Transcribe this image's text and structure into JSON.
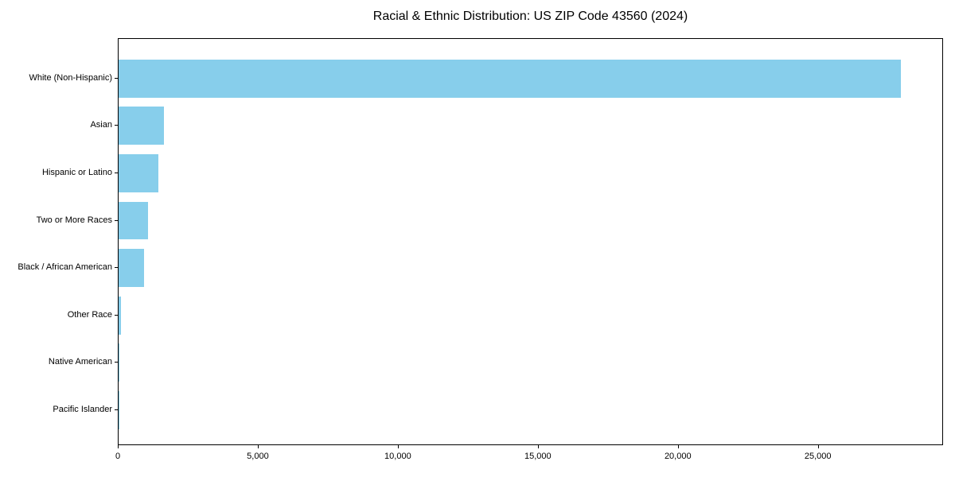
{
  "chart_data": {
    "type": "bar",
    "orientation": "horizontal",
    "title": "Racial & Ethnic Distribution: US ZIP Code 43560 (2024)",
    "categories": [
      "White (Non-Hispanic)",
      "Asian",
      "Hispanic or Latino",
      "Two or More Races",
      "Black / African American",
      "Other Race",
      "Native American",
      "Pacific Islander"
    ],
    "values": [
      28000,
      1620,
      1420,
      1050,
      910,
      75,
      15,
      5
    ],
    "bar_color": "#87CEEB",
    "xlabel": "",
    "ylabel": "",
    "xlim": [
      0,
      29470
    ],
    "x_ticks": [
      0,
      5000,
      10000,
      15000,
      20000,
      25000
    ],
    "x_tick_labels": [
      "0",
      "5,000",
      "10,000",
      "15,000",
      "20,000",
      "25,000"
    ],
    "grid": false,
    "legend_position": "none",
    "background_color": "#ffffff",
    "axis_color": "#000000"
  }
}
